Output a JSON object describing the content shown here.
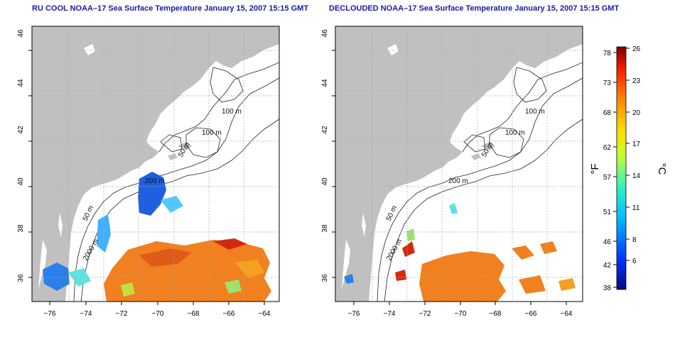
{
  "panels": [
    {
      "title": "RU COOL NOAA–17 Sea Surface Temperature January 15, 2007 15:15 GMT",
      "contour_labels": [
        "100 m",
        "100 m",
        "50 m",
        "200 m",
        "50 m",
        "2000 m"
      ]
    },
    {
      "title": "DECLOUDED NOAA–17 Sea Surface Temperature January 15, 2007 15:15 GMT",
      "contour_labels": [
        "100 m",
        "100 m",
        "50 m",
        "200 m",
        "50 m",
        "2000 m"
      ]
    }
  ],
  "axes": {
    "lat_ticks": [
      "46",
      "44",
      "42",
      "40",
      "38",
      "36"
    ],
    "lon_ticks": [
      "−76",
      "−74",
      "−72",
      "−70",
      "−68",
      "−66",
      "−64"
    ]
  },
  "colorbar": {
    "f_label": "°F",
    "c_label": "°C",
    "f_ticks": [
      "78",
      "73",
      "68",
      "62",
      "57",
      "51",
      "46",
      "42",
      "38"
    ],
    "c_ticks": [
      "26",
      "23",
      "20",
      "17",
      "14",
      "11",
      "8",
      "6"
    ]
  },
  "colors": {
    "land": "#c0c0c0",
    "water": "#ffffff",
    "title": "#1a1aa8",
    "warm": "#f08020",
    "hot": "#d22a10",
    "cold": "#1f5fe0"
  }
}
